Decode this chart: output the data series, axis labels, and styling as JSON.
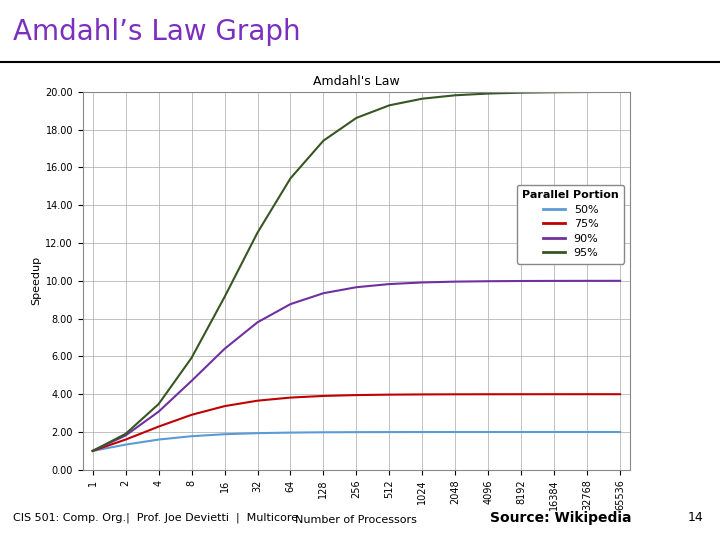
{
  "title_slide": "Amdahl’s Law Graph",
  "title_slide_color": "#7B2FBE",
  "chart_title": "Amdahl's Law",
  "xlabel": "Number of Processors",
  "ylabel": "Speedup",
  "ylim": [
    0.0,
    20.0
  ],
  "yticks": [
    0.0,
    2.0,
    4.0,
    6.0,
    8.0,
    10.0,
    12.0,
    14.0,
    16.0,
    18.0,
    20.0
  ],
  "processors": [
    1,
    2,
    4,
    8,
    16,
    32,
    64,
    128,
    256,
    512,
    1024,
    2048,
    4096,
    8192,
    16384,
    32768,
    65536
  ],
  "parallel_portions": [
    0.5,
    0.75,
    0.9,
    0.95
  ],
  "line_colors": [
    "#5B9BD5",
    "#C00000",
    "#7030A0",
    "#375623"
  ],
  "legend_labels": [
    "50%",
    "75%",
    "90%",
    "95%"
  ],
  "legend_title": "Parallel Portion",
  "footer_left": "CIS 501: Comp. Org.|  Prof. Joe Devietti  |  Multicore",
  "footer_right": "Source: Wikipedia",
  "footer_page": "14",
  "bg_color": "#FFFFFF",
  "plot_bg_color": "#FFFFFF",
  "grid_color": "#AAAAAA",
  "chart_title_fontsize": 9,
  "axis_label_fontsize": 8,
  "tick_fontsize": 7,
  "legend_fontsize": 8,
  "line_width": 1.5,
  "title_slide_fontsize": 20
}
